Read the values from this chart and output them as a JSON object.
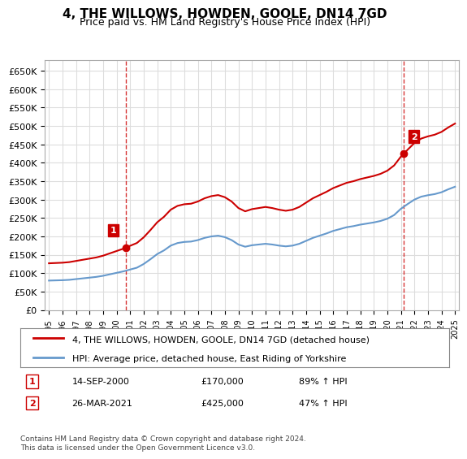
{
  "title": "4, THE WILLOWS, HOWDEN, GOOLE, DN14 7GD",
  "subtitle": "Price paid vs. HM Land Registry's House Price Index (HPI)",
  "ylabel_ticks": [
    "£0",
    "£50K",
    "£100K",
    "£150K",
    "£200K",
    "£250K",
    "£300K",
    "£350K",
    "£400K",
    "£450K",
    "£500K",
    "£550K",
    "£600K",
    "£650K"
  ],
  "ytick_values": [
    0,
    50000,
    100000,
    150000,
    200000,
    250000,
    300000,
    350000,
    400000,
    450000,
    500000,
    550000,
    600000,
    650000
  ],
  "ylim": [
    0,
    680000
  ],
  "x_start_year": 1995,
  "x_end_year": 2025,
  "sale1_year": 2000.71,
  "sale1_value": 170000,
  "sale2_year": 2021.23,
  "sale2_value": 425000,
  "vline1_year": 2000.71,
  "vline2_year": 2021.23,
  "red_line_color": "#cc0000",
  "blue_line_color": "#6699cc",
  "vline_color": "#cc0000",
  "background_color": "#ffffff",
  "grid_color": "#dddddd",
  "legend_label_red": "4, THE WILLOWS, HOWDEN, GOOLE, DN14 7GD (detached house)",
  "legend_label_blue": "HPI: Average price, detached house, East Riding of Yorkshire",
  "annotation1_date": "14-SEP-2000",
  "annotation1_price": "£170,000",
  "annotation1_hpi": "89% ↑ HPI",
  "annotation2_date": "26-MAR-2021",
  "annotation2_price": "£425,000",
  "annotation2_hpi": "47% ↑ HPI",
  "footer": "Contains HM Land Registry data © Crown copyright and database right 2024.\nThis data is licensed under the Open Government Licence v3.0."
}
